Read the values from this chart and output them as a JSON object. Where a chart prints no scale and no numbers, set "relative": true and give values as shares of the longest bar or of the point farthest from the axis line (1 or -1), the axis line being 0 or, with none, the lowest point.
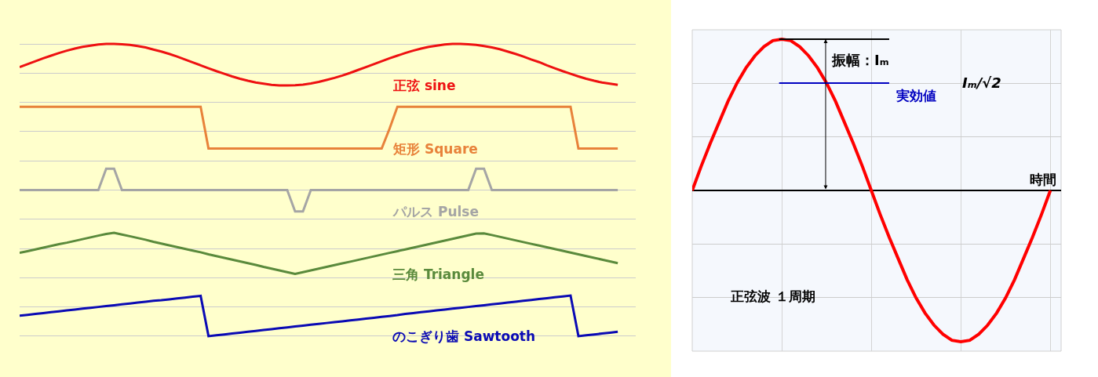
{
  "chart_data": [
    {
      "type": "line",
      "relative": true,
      "grid": "y",
      "legend": false,
      "categories": [
        null,
        null,
        null,
        null,
        null,
        null,
        null,
        null,
        null,
        null,
        null,
        null,
        null,
        null,
        null,
        null,
        null,
        null,
        null,
        null,
        null,
        null,
        null,
        null,
        null,
        null,
        null,
        null,
        null,
        null,
        null,
        null,
        null,
        null,
        null,
        null,
        null,
        null,
        null,
        null,
        null,
        null,
        null,
        null,
        null,
        null,
        null,
        null,
        null,
        null,
        null,
        null,
        null,
        null,
        null,
        null,
        null,
        null,
        null,
        null,
        null,
        null,
        null,
        null,
        null,
        null,
        null,
        null,
        null,
        null,
        null,
        null,
        null,
        null,
        null,
        null,
        null
      ],
      "series": [
        {
          "name": "正弦 sine",
          "color": "#ee1111",
          "values": [
            0.921,
            0.931,
            0.941,
            0.951,
            0.96,
            0.969,
            0.977,
            0.984,
            0.99,
            0.994,
            0.998,
            1.0,
            1.0,
            0.999,
            0.997,
            0.993,
            0.988,
            0.981,
            0.974,
            0.966,
            0.957,
            0.947,
            0.937,
            0.927,
            0.917,
            0.907,
            0.898,
            0.889,
            0.881,
            0.874,
            0.868,
            0.864,
            0.86,
            0.858,
            0.858,
            0.859,
            0.861,
            0.865,
            0.87,
            0.877,
            0.884,
            0.892,
            0.901,
            0.911,
            0.921,
            0.931,
            0.941,
            0.951,
            0.96,
            0.969,
            0.977,
            0.984,
            0.99,
            0.994,
            0.998,
            1.0,
            1.0,
            0.999,
            0.997,
            0.993,
            0.988,
            0.982,
            0.974,
            0.966,
            0.957,
            0.947,
            0.938,
            0.927,
            0.917,
            0.907,
            0.898,
            0.889,
            0.881,
            0.874,
            0.868,
            0.864,
            0.86
          ]
        },
        {
          "name": "矩形 Square",
          "color": "#e8823a",
          "values": [
            0.785,
            0.785,
            0.785,
            0.785,
            0.785,
            0.785,
            0.785,
            0.785,
            0.785,
            0.785,
            0.785,
            0.785,
            0.785,
            0.785,
            0.785,
            0.785,
            0.785,
            0.785,
            0.785,
            0.785,
            0.785,
            0.785,
            0.785,
            0.785,
            0.642,
            0.642,
            0.642,
            0.642,
            0.642,
            0.642,
            0.642,
            0.642,
            0.642,
            0.642,
            0.642,
            0.642,
            0.642,
            0.642,
            0.642,
            0.642,
            0.642,
            0.642,
            0.642,
            0.642,
            0.642,
            0.642,
            0.642,
            0.71,
            0.785,
            0.785,
            0.785,
            0.785,
            0.785,
            0.785,
            0.785,
            0.785,
            0.785,
            0.785,
            0.785,
            0.785,
            0.785,
            0.785,
            0.785,
            0.785,
            0.785,
            0.785,
            0.785,
            0.785,
            0.785,
            0.785,
            0.785,
            0.642,
            0.642,
            0.642,
            0.642,
            0.642,
            0.642
          ]
        },
        {
          "name": "パルス Pulse",
          "color": "#a5a5a5",
          "values": [
            0.5,
            0.5,
            0.5,
            0.5,
            0.5,
            0.5,
            0.5,
            0.5,
            0.5,
            0.5,
            0.5,
            0.573,
            0.573,
            0.5,
            0.5,
            0.5,
            0.5,
            0.5,
            0.5,
            0.5,
            0.5,
            0.5,
            0.5,
            0.5,
            0.5,
            0.5,
            0.5,
            0.5,
            0.5,
            0.5,
            0.5,
            0.5,
            0.5,
            0.5,
            0.5,
            0.427,
            0.427,
            0.5,
            0.5,
            0.5,
            0.5,
            0.5,
            0.5,
            0.5,
            0.5,
            0.5,
            0.5,
            0.5,
            0.5,
            0.5,
            0.5,
            0.5,
            0.5,
            0.5,
            0.5,
            0.5,
            0.5,
            0.5,
            0.573,
            0.573,
            0.5,
            0.5,
            0.5,
            0.5,
            0.5,
            0.5,
            0.5,
            0.5,
            0.5,
            0.5,
            0.5,
            0.5,
            0.5,
            0.5,
            0.5,
            0.5,
            0.5
          ]
        },
        {
          "name": "三角 Triangle",
          "color": "#5a8a3c",
          "values": [
            0.285,
            0.291,
            0.297,
            0.303,
            0.309,
            0.315,
            0.32,
            0.326,
            0.332,
            0.338,
            0.344,
            0.35,
            0.354,
            0.348,
            0.342,
            0.336,
            0.33,
            0.323,
            0.317,
            0.311,
            0.305,
            0.299,
            0.293,
            0.287,
            0.28,
            0.274,
            0.268,
            0.262,
            0.256,
            0.25,
            0.244,
            0.237,
            0.231,
            0.225,
            0.219,
            0.213,
            0.219,
            0.225,
            0.231,
            0.237,
            0.243,
            0.249,
            0.255,
            0.261,
            0.267,
            0.273,
            0.279,
            0.285,
            0.291,
            0.297,
            0.303,
            0.309,
            0.315,
            0.321,
            0.327,
            0.333,
            0.339,
            0.345,
            0.351,
            0.352,
            0.346,
            0.34,
            0.334,
            0.328,
            0.322,
            0.316,
            0.31,
            0.304,
            0.298,
            0.292,
            0.286,
            0.28,
            0.274,
            0.268,
            0.262,
            0.256,
            0.25
          ]
        },
        {
          "name": "のこぎり歯 Sawtooth",
          "color": "#0a0ab4",
          "values": [
            0.07,
            0.073,
            0.076,
            0.079,
            0.082,
            0.085,
            0.088,
            0.091,
            0.094,
            0.097,
            0.1,
            0.103,
            0.106,
            0.109,
            0.112,
            0.115,
            0.118,
            0.121,
            0.123,
            0.126,
            0.129,
            0.132,
            0.135,
            0.138,
            0.0,
            0.003,
            0.006,
            0.009,
            0.012,
            0.015,
            0.018,
            0.021,
            0.024,
            0.027,
            0.03,
            0.033,
            0.036,
            0.039,
            0.042,
            0.045,
            0.048,
            0.051,
            0.054,
            0.057,
            0.06,
            0.063,
            0.066,
            0.069,
            0.072,
            0.076,
            0.079,
            0.082,
            0.085,
            0.088,
            0.091,
            0.094,
            0.097,
            0.1,
            0.103,
            0.106,
            0.109,
            0.112,
            0.115,
            0.118,
            0.121,
            0.124,
            0.127,
            0.13,
            0.133,
            0.136,
            0.139,
            0.0,
            0.003,
            0.006,
            0.009,
            0.012,
            0.015
          ]
        }
      ]
    },
    {
      "type": "line",
      "relative": true,
      "grid": true,
      "legend": false,
      "xlabel": "時間",
      "categories": [
        null,
        null,
        null,
        null,
        null,
        null,
        null,
        null,
        null,
        null,
        null,
        null,
        null,
        null,
        null,
        null,
        null,
        null,
        null,
        null,
        null,
        null,
        null,
        null,
        null,
        null,
        null,
        null,
        null,
        null,
        null,
        null,
        null,
        null,
        null,
        null,
        null,
        null,
        null,
        null,
        null
      ],
      "series": [
        {
          "color": "#ff0000",
          "values": [
            0,
            0.16,
            0.31,
            0.45,
            0.59,
            0.71,
            0.81,
            0.89,
            0.95,
            0.99,
            1,
            0.99,
            0.95,
            0.89,
            0.81,
            0.71,
            0.59,
            0.45,
            0.31,
            0.16,
            0,
            -0.16,
            -0.31,
            -0.45,
            -0.59,
            -0.71,
            -0.81,
            -0.89,
            -0.95,
            -0.99,
            -1,
            -0.99,
            -0.95,
            -0.89,
            -0.81,
            -0.71,
            -0.59,
            -0.45,
            -0.31,
            -0.16,
            0
          ]
        }
      ],
      "ref_lines": [
        {
          "axis": "y",
          "value": 1,
          "color": "#000000"
        },
        {
          "axis": "y",
          "value": 0.71,
          "label": "実効値",
          "color": "#0000c0"
        }
      ],
      "annotations": [
        "振幅：Iₘ",
        "Iₘ/√2",
        "正弦波 １周期"
      ]
    }
  ]
}
